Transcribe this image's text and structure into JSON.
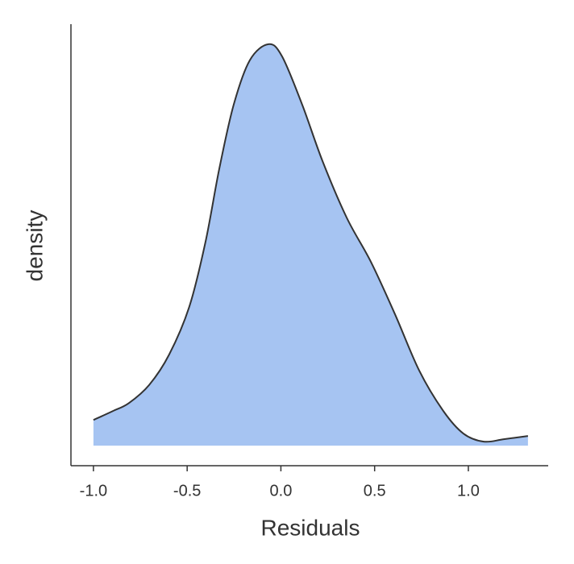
{
  "chart_data": {
    "type": "density",
    "x_label": "Residuals",
    "y_label": "density",
    "x": [
      -1.0,
      -0.897,
      -0.811,
      -0.703,
      -0.596,
      -0.488,
      -0.402,
      -0.329,
      -0.252,
      -0.166,
      -0.067,
      0.006,
      0.114,
      0.222,
      0.351,
      0.48,
      0.609,
      0.738,
      0.867,
      0.974,
      1.082,
      1.189,
      1.318
    ],
    "values": [
      0.064,
      0.086,
      0.106,
      0.151,
      0.227,
      0.347,
      0.508,
      0.689,
      0.849,
      0.96,
      1.0,
      0.97,
      0.849,
      0.709,
      0.568,
      0.458,
      0.327,
      0.187,
      0.086,
      0.03,
      0.01,
      0.016,
      0.024
    ],
    "fill": "#a6c4f2",
    "line_color": "#333333",
    "xlim": [
      -1.12,
      1.426
    ],
    "ylim": [
      -0.05,
      1.05
    ],
    "xticks": [
      {
        "value": -1,
        "label": "-1.0"
      },
      {
        "value": -0.5,
        "label": "-0.5"
      },
      {
        "value": 0,
        "label": "0.0"
      },
      {
        "value": 0.5,
        "label": "0.5"
      },
      {
        "value": 1,
        "label": "1.0"
      }
    ]
  }
}
